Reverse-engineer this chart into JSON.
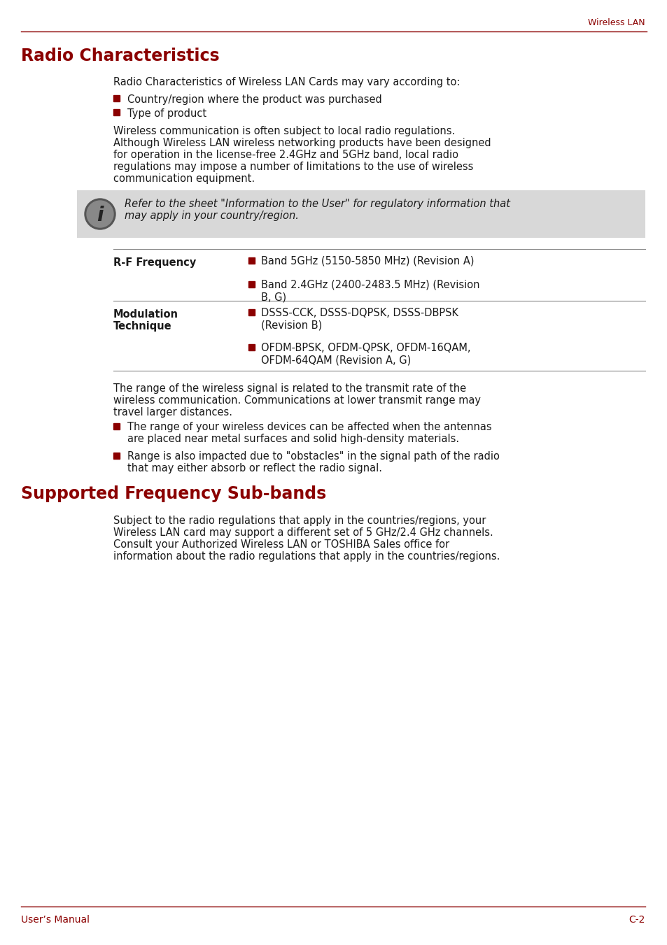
{
  "header_right": "Wireless LAN",
  "header_color": "#8B0000",
  "title1": "Radio Characteristics",
  "title1_color": "#8B0000",
  "title2": "Supported Frequency Sub-bands",
  "title2_color": "#8B0000",
  "footer_left": "User’s Manual",
  "footer_right": "C-2",
  "footer_color": "#8B0000",
  "body_color": "#1a1a1a",
  "bg_color": "#FFFFFF",
  "line_color": "#8B0000",
  "bullet_color": "#8B0000",
  "note_bg": "#D8D8D8",
  "table_line_color": "#888888",
  "para1": "Radio Characteristics of Wireless LAN Cards may vary according to:",
  "bullet1": "Country/region where the product was purchased",
  "bullet2": "Type of product",
  "para2": [
    "Wireless communication is often subject to local radio regulations.",
    "Although Wireless LAN wireless networking products have been designed",
    "for operation in the license-free 2.4GHz and 5GHz band, local radio",
    "regulations may impose a number of limitations to the use of wireless",
    "communication equipment."
  ],
  "note_line1": "Refer to the sheet \"Information to the User\" for regulatory information that",
  "note_line2": "may apply in your country/region.",
  "table_label1": "R-F Frequency",
  "table_item1a": "Band 5GHz (5150-5850 MHz) (Revision A)",
  "table_item1b_l1": "Band 2.4GHz (2400-2483.5 MHz) (Revision",
  "table_item1b_l2": "B, G)",
  "table_label2_l1": "Modulation",
  "table_label2_l2": "Technique",
  "table_item2a_l1": "DSSS-CCK, DSSS-DQPSK, DSSS-DBPSK",
  "table_item2a_l2": "(Revision B)",
  "table_item2b_l1": "OFDM-BPSK, OFDM-QPSK, OFDM-16QAM,",
  "table_item2b_l2": "OFDM-64QAM (Revision A, G)",
  "para3": [
    "The range of the wireless signal is related to the transmit rate of the",
    "wireless communication. Communications at lower transmit range may",
    "travel larger distances."
  ],
  "bullet3_l1": "The range of your wireless devices can be affected when the antennas",
  "bullet3_l2": "are placed near metal surfaces and solid high-density materials.",
  "bullet4_l1": "Range is also impacted due to \"obstacles\" in the signal path of the radio",
  "bullet4_l2": "that may either absorb or reflect the radio signal.",
  "para4": [
    "Subject to the radio regulations that apply in the countries/regions, your",
    "Wireless LAN card may support a different set of 5 GHz/2.4 GHz channels.",
    "Consult your Authorized Wireless LAN or TOSHIBA Sales office for",
    "information about the radio regulations that apply in the countries/regions."
  ]
}
